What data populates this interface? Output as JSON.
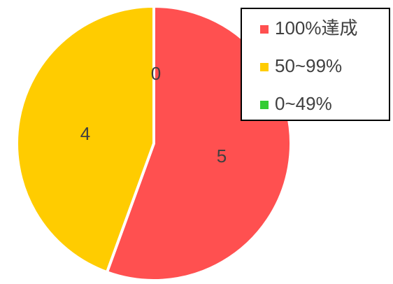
{
  "chart_data": {
    "type": "pie",
    "categories": [
      "100%達成",
      "50~99%",
      "0~49%"
    ],
    "values": [
      5,
      4,
      0
    ],
    "colors": [
      "#ff5050",
      "#ffcc00",
      "#33cc33"
    ],
    "slice_border_color": "#ffffff",
    "data_labels": [
      "5",
      "4",
      "0"
    ],
    "legend": {
      "placement": "top-right",
      "entries": [
        "100%達成",
        "50~99%",
        "0~49%"
      ]
    },
    "title": "",
    "start_angle_deg": 0,
    "direction": "clockwise"
  }
}
